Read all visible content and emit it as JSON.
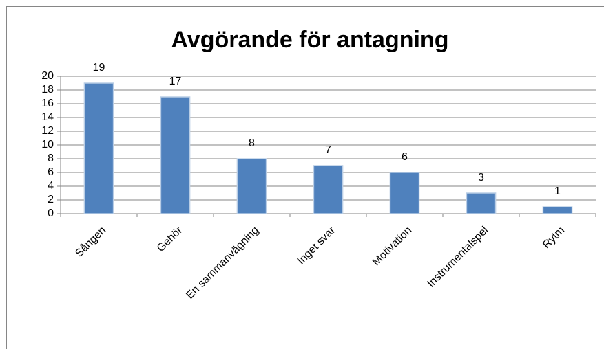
{
  "chart_data": {
    "type": "bar",
    "title": "Avgörande för antagning",
    "categories": [
      "Sången",
      "Gehör",
      "En sammanvägning",
      "Inget svar",
      "Motivation",
      "Instrumentalspel",
      "Rytm"
    ],
    "values": [
      19,
      17,
      8,
      7,
      6,
      3,
      1
    ],
    "color": "#4f81bd",
    "ylim": [
      0,
      20
    ],
    "yticks": [
      0,
      2,
      4,
      6,
      8,
      10,
      12,
      14,
      16,
      18,
      20
    ],
    "grid": true
  }
}
